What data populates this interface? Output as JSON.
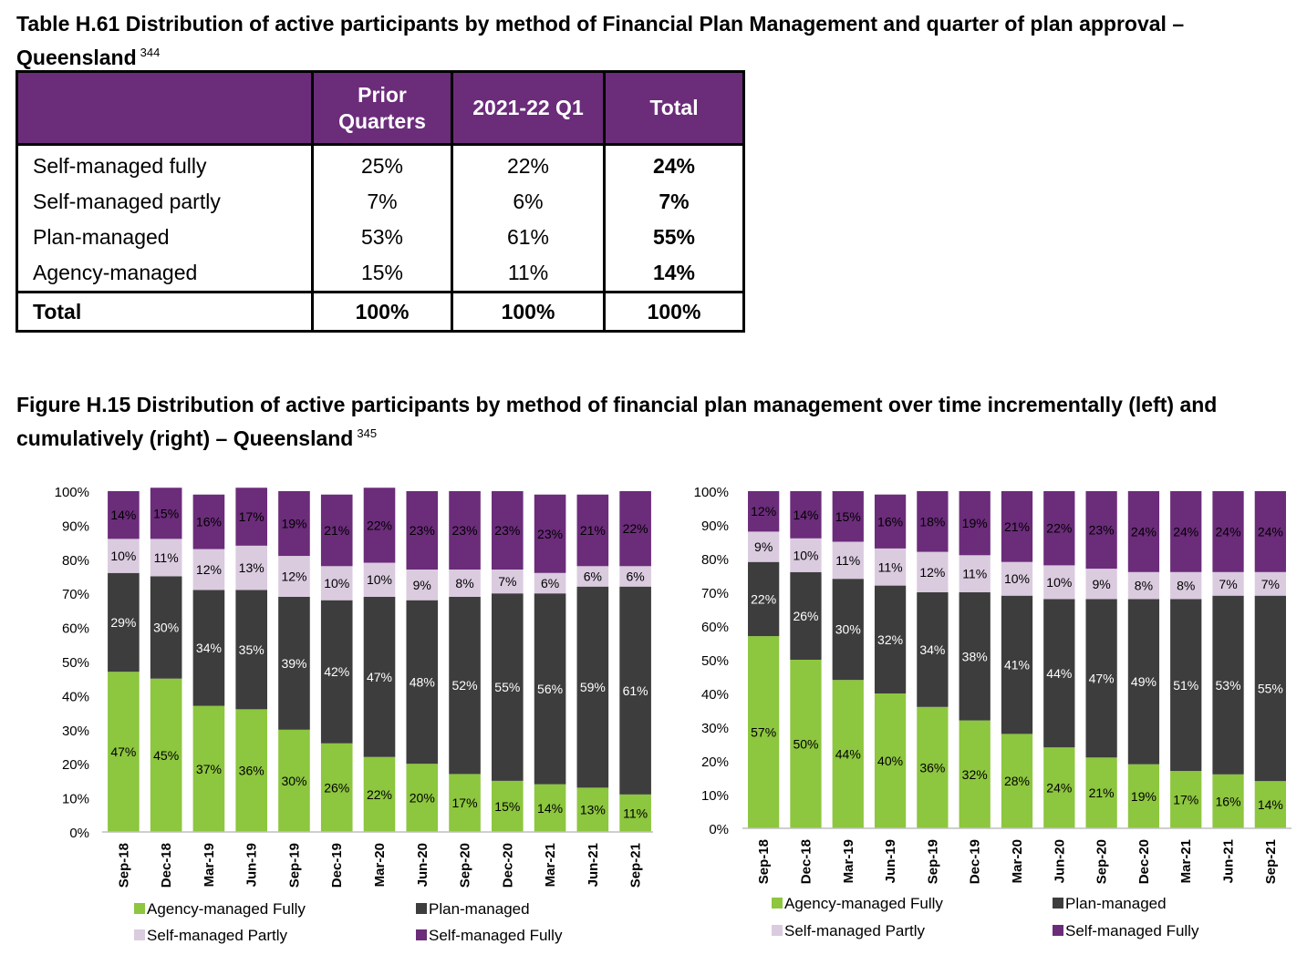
{
  "table": {
    "title": "Table H.61 Distribution of active participants by method of Financial Plan Management and quarter of plan approval – Queensland",
    "footnote": "344",
    "header": {
      "blank": "",
      "col1_line1": "Prior",
      "col1_line2": "Quarters",
      "col2": "2021-22 Q1",
      "col3": "Total"
    },
    "rows": [
      {
        "label": "Self-managed fully",
        "prior": "25%",
        "q1": "22%",
        "total": "24%"
      },
      {
        "label": "Self-managed partly",
        "prior": "7%",
        "q1": "6%",
        "total": "7%"
      },
      {
        "label": "Plan-managed",
        "prior": "53%",
        "q1": "61%",
        "total": "55%"
      },
      {
        "label": "Agency-managed",
        "prior": "15%",
        "q1": "11%",
        "total": "14%"
      }
    ],
    "total_row": {
      "label": "Total",
      "prior": "100%",
      "q1": "100%",
      "total": "100%"
    },
    "header_color": "#6b2c7a"
  },
  "figure": {
    "title": "Figure H.15 Distribution of active participants by method of financial plan management over time incrementally (left) and cumulatively (right) – Queensland",
    "footnote": "345"
  },
  "colors": {
    "agency": "#8dc63f",
    "plan": "#3d3d3d",
    "partly": "#dacbdf",
    "fully": "#6b2c7a",
    "grid_axis": "#bfbfbf"
  },
  "chart_data": [
    {
      "type": "bar",
      "stacked": true,
      "categories": [
        "Sep-18",
        "Dec-18",
        "Mar-19",
        "Jun-19",
        "Sep-19",
        "Dec-19",
        "Mar-20",
        "Jun-20",
        "Sep-20",
        "Dec-20",
        "Mar-21",
        "Jun-21",
        "Sep-21"
      ],
      "yticks": [
        "0%",
        "10%",
        "20%",
        "30%",
        "40%",
        "50%",
        "60%",
        "70%",
        "80%",
        "90%",
        "100%"
      ],
      "ylim": [
        0,
        100
      ],
      "legend_position": "bottom",
      "series": [
        {
          "name": "Agency-managed Fully",
          "color_key": "agency",
          "values": [
            47,
            45,
            37,
            36,
            30,
            26,
            22,
            20,
            17,
            15,
            14,
            13,
            11
          ]
        },
        {
          "name": "Plan-managed",
          "color_key": "plan",
          "values": [
            29,
            30,
            34,
            35,
            39,
            42,
            47,
            48,
            52,
            55,
            56,
            59,
            61
          ]
        },
        {
          "name": "Self-managed Partly",
          "color_key": "partly",
          "values": [
            10,
            11,
            12,
            13,
            12,
            10,
            10,
            9,
            8,
            7,
            6,
            6,
            6
          ]
        },
        {
          "name": "Self-managed Fully",
          "color_key": "fully",
          "values": [
            14,
            15,
            16,
            17,
            19,
            21,
            22,
            23,
            23,
            23,
            23,
            21,
            22
          ]
        }
      ]
    },
    {
      "type": "bar",
      "stacked": true,
      "categories": [
        "Sep-18",
        "Dec-18",
        "Mar-19",
        "Jun-19",
        "Sep-19",
        "Dec-19",
        "Mar-20",
        "Jun-20",
        "Sep-20",
        "Dec-20",
        "Mar-21",
        "Jun-21",
        "Sep-21"
      ],
      "yticks": [
        "0%",
        "10%",
        "20%",
        "30%",
        "40%",
        "50%",
        "60%",
        "70%",
        "80%",
        "90%",
        "100%"
      ],
      "ylim": [
        0,
        100
      ],
      "legend_position": "bottom",
      "series": [
        {
          "name": "Agency-managed Fully",
          "color_key": "agency",
          "values": [
            57,
            50,
            44,
            40,
            36,
            32,
            28,
            24,
            21,
            19,
            17,
            16,
            14
          ]
        },
        {
          "name": "Plan-managed",
          "color_key": "plan",
          "values": [
            22,
            26,
            30,
            32,
            34,
            38,
            41,
            44,
            47,
            49,
            51,
            53,
            55
          ]
        },
        {
          "name": "Self-managed Partly",
          "color_key": "partly",
          "values": [
            9,
            10,
            11,
            11,
            12,
            11,
            10,
            10,
            9,
            8,
            8,
            7,
            7
          ]
        },
        {
          "name": "Self-managed Fully",
          "color_key": "fully",
          "values": [
            12,
            14,
            15,
            16,
            18,
            19,
            21,
            22,
            23,
            24,
            24,
            24,
            24
          ]
        }
      ]
    }
  ]
}
